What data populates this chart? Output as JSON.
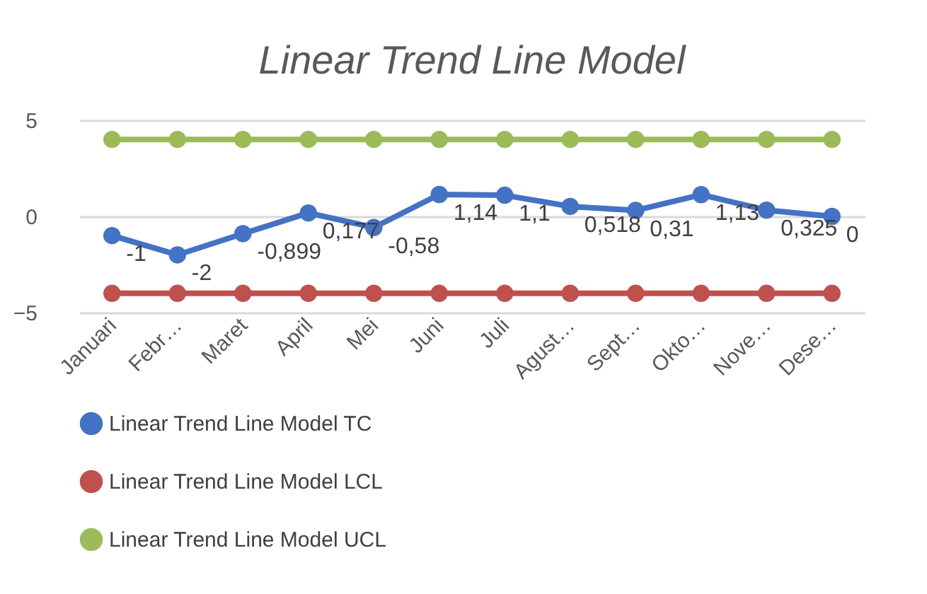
{
  "chart_data": {
    "type": "line",
    "title": "Linear Trend Line Model",
    "categories": [
      "Januari",
      "Febr…",
      "Maret",
      "April",
      "Mei",
      "Juni",
      "Juli",
      "Agust…",
      "Sept…",
      "Okto…",
      "Nove…",
      "Dese…"
    ],
    "series": [
      {
        "name": "Linear Trend Line Model TC",
        "color": "#4472c4",
        "values": [
          -1,
          -2,
          -0.899,
          0.177,
          -0.58,
          1.14,
          1.1,
          0.518,
          0.31,
          1.13,
          0.325,
          0
        ],
        "value_labels": [
          "-1",
          "-2",
          "-0,899",
          "0,177",
          "-0,58",
          "1,14",
          "1,1",
          "0,518",
          "0,31",
          "1,13",
          "0,325",
          "0"
        ]
      },
      {
        "name": "Linear Trend Line Model LCL",
        "color": "#c0504d",
        "values": [
          -4,
          -4,
          -4,
          -4,
          -4,
          -4,
          -4,
          -4,
          -4,
          -4,
          -4,
          -4
        ]
      },
      {
        "name": "Linear Trend Line Model UCL",
        "color": "#9bbb59",
        "values": [
          4,
          4,
          4,
          4,
          4,
          4,
          4,
          4,
          4,
          4,
          4,
          4
        ]
      }
    ],
    "ylim": [
      -5,
      5
    ],
    "yticks": [
      -5,
      0,
      5
    ],
    "grid": "y",
    "legend": "bottom",
    "marker": "circle",
    "line_style": "solid"
  }
}
